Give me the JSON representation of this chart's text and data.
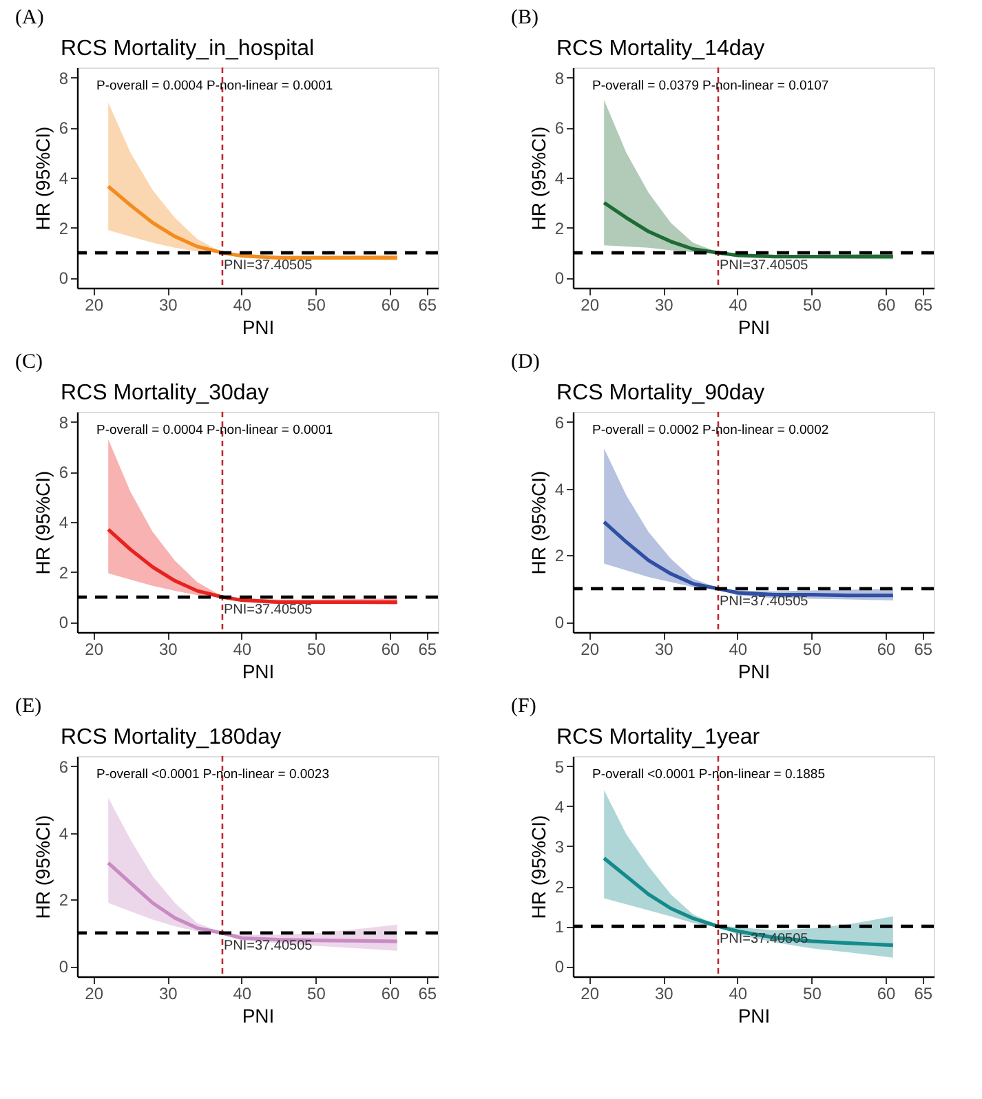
{
  "chart_data": [
    {
      "type": "line",
      "title": "RCS Mortality_in_hospital",
      "xlabel": "PNI",
      "ylabel": "HR (95%CI)",
      "annotations": [
        "(A)",
        "P-overall = 0.0004 P-non-linear = 0.0001"
      ],
      "x": [
        22,
        25,
        28,
        31,
        34,
        37.4,
        40,
        45,
        50,
        55,
        61
      ],
      "xlim": [
        17.8,
        66.5
      ],
      "xticks": [
        20,
        30,
        40,
        50,
        60,
        65
      ],
      "ylim": [
        -0.4,
        8.4
      ],
      "yticks": [
        0,
        2,
        4,
        6,
        8
      ],
      "grid": false,
      "legend": false,
      "marker": "none",
      "line_style": "solid",
      "series": [
        {
          "color": "#f28c1e",
          "values": [
            3.65,
            2.9,
            2.2,
            1.65,
            1.25,
            1.0,
            0.88,
            0.8,
            0.8,
            0.8,
            0.8
          ],
          "lower": [
            1.9,
            1.65,
            1.4,
            1.2,
            1.05,
            1.0,
            0.8,
            0.72,
            0.72,
            0.72,
            0.7
          ],
          "upper": [
            7.0,
            5.0,
            3.5,
            2.4,
            1.55,
            1.0,
            0.95,
            0.88,
            0.88,
            0.9,
            0.92
          ]
        }
      ],
      "ref_lines": [
        {
          "axis": "x",
          "value": 37.40505,
          "label": "PNI=37.40505",
          "color": "#c0272d",
          "line_style": "dashed"
        },
        {
          "axis": "y",
          "value": 1,
          "color": "#000000",
          "line_style": "dashed"
        }
      ]
    },
    {
      "type": "line",
      "title": "RCS Mortality_14day",
      "xlabel": "PNI",
      "ylabel": "HR (95%CI)",
      "annotations": [
        "(B)",
        "P-overall = 0.0379  P-non-linear = 0.0107"
      ],
      "x": [
        22,
        25,
        28,
        31,
        34,
        37.4,
        40,
        45,
        50,
        55,
        61
      ],
      "xlim": [
        17.8,
        66.5
      ],
      "xticks": [
        20,
        30,
        40,
        50,
        60,
        65
      ],
      "ylim": [
        -0.4,
        8.4
      ],
      "yticks": [
        0,
        2,
        4,
        6,
        8
      ],
      "grid": false,
      "legend": false,
      "marker": "none",
      "line_style": "solid",
      "series": [
        {
          "color": "#1f6b35",
          "values": [
            3.0,
            2.4,
            1.85,
            1.45,
            1.15,
            1.0,
            0.9,
            0.85,
            0.85,
            0.85,
            0.85
          ],
          "lower": [
            1.3,
            1.25,
            1.2,
            1.1,
            1.02,
            0.98,
            0.82,
            0.78,
            0.78,
            0.76,
            0.74
          ],
          "upper": [
            7.1,
            5.0,
            3.4,
            2.2,
            1.4,
            1.02,
            0.98,
            0.92,
            0.92,
            0.94,
            0.96
          ]
        }
      ],
      "ref_lines": [
        {
          "axis": "x",
          "value": 37.40505,
          "label": "PNI=37.40505",
          "color": "#c0272d",
          "line_style": "dashed"
        },
        {
          "axis": "y",
          "value": 1,
          "color": "#000000",
          "line_style": "dashed"
        }
      ]
    },
    {
      "type": "line",
      "title": "RCS Mortality_30day",
      "xlabel": "PNI",
      "ylabel": "HR (95%CI)",
      "annotations": [
        "(C)",
        "P-overall = 0.0004  P-non-linear = 0.0001"
      ],
      "x": [
        22,
        25,
        28,
        31,
        34,
        37.4,
        40,
        45,
        50,
        55,
        61
      ],
      "xlim": [
        17.8,
        66.5
      ],
      "xticks": [
        20,
        30,
        40,
        50,
        60,
        65
      ],
      "ylim": [
        -0.4,
        8.4
      ],
      "yticks": [
        0,
        2,
        4,
        6,
        8
      ],
      "grid": false,
      "legend": false,
      "marker": "none",
      "line_style": "solid",
      "series": [
        {
          "color": "#e8231f",
          "values": [
            3.7,
            2.9,
            2.2,
            1.65,
            1.25,
            1.0,
            0.88,
            0.8,
            0.8,
            0.8,
            0.8
          ],
          "lower": [
            1.95,
            1.7,
            1.45,
            1.25,
            1.08,
            0.98,
            0.8,
            0.72,
            0.72,
            0.72,
            0.7
          ],
          "upper": [
            7.3,
            5.2,
            3.6,
            2.45,
            1.6,
            1.02,
            0.95,
            0.9,
            0.9,
            0.92,
            0.95
          ]
        }
      ],
      "ref_lines": [
        {
          "axis": "x",
          "value": 37.40505,
          "label": "PNI=37.40505",
          "color": "#c0272d",
          "line_style": "dashed"
        },
        {
          "axis": "y",
          "value": 1,
          "color": "#000000",
          "line_style": "dashed"
        }
      ]
    },
    {
      "type": "line",
      "title": "RCS Mortality_90day",
      "xlabel": "PNI",
      "ylabel": "HR (95%CI)",
      "annotations": [
        "(D)",
        "P-overall = 0.0002  P-non-linear = 0.0002"
      ],
      "x": [
        22,
        25,
        28,
        31,
        34,
        37.4,
        40,
        45,
        50,
        55,
        61
      ],
      "xlim": [
        17.8,
        66.5
      ],
      "xticks": [
        20,
        30,
        40,
        50,
        60,
        65
      ],
      "ylim": [
        -0.3,
        6.3
      ],
      "yticks": [
        0,
        2,
        4,
        6
      ],
      "grid": false,
      "legend": false,
      "marker": "none",
      "line_style": "solid",
      "series": [
        {
          "color": "#2e4fa3",
          "values": [
            3.0,
            2.4,
            1.85,
            1.45,
            1.15,
            1.0,
            0.88,
            0.82,
            0.82,
            0.8,
            0.8
          ],
          "lower": [
            1.75,
            1.55,
            1.35,
            1.2,
            1.05,
            0.98,
            0.8,
            0.72,
            0.7,
            0.68,
            0.65
          ],
          "upper": [
            5.2,
            3.8,
            2.7,
            1.9,
            1.3,
            1.02,
            0.95,
            0.92,
            0.95,
            0.97,
            1.0
          ]
        }
      ],
      "ref_lines": [
        {
          "axis": "x",
          "value": 37.40505,
          "label": "PNI=37.40505",
          "color": "#c0272d",
          "line_style": "dashed"
        },
        {
          "axis": "y",
          "value": 1,
          "color": "#000000",
          "line_style": "dashed"
        }
      ]
    },
    {
      "type": "line",
      "title": "RCS Mortality_180day",
      "xlabel": "PNI",
      "ylabel": "HR (95%CI)",
      "annotations": [
        "(E)",
        "P-overall <0.0001 P-non-linear = 0.0023"
      ],
      "x": [
        22,
        25,
        28,
        31,
        34,
        37.4,
        40,
        45,
        50,
        55,
        61
      ],
      "xlim": [
        17.8,
        66.5
      ],
      "xticks": [
        20,
        30,
        40,
        50,
        60,
        65
      ],
      "ylim": [
        -0.3,
        6.3
      ],
      "yticks": [
        0,
        2,
        4,
        6
      ],
      "grid": false,
      "legend": false,
      "marker": "none",
      "line_style": "solid",
      "series": [
        {
          "color": "#c98bc4",
          "values": [
            3.1,
            2.5,
            1.9,
            1.45,
            1.15,
            1.0,
            0.85,
            0.8,
            0.78,
            0.77,
            0.75
          ],
          "lower": [
            1.9,
            1.65,
            1.4,
            1.2,
            1.05,
            0.98,
            0.78,
            0.7,
            0.62,
            0.55,
            0.47
          ],
          "upper": [
            5.05,
            3.8,
            2.7,
            1.9,
            1.3,
            1.02,
            0.95,
            0.95,
            1.0,
            1.1,
            1.25
          ]
        }
      ],
      "ref_lines": [
        {
          "axis": "x",
          "value": 37.40505,
          "label": "PNI=37.40505",
          "color": "#c0272d",
          "line_style": "dashed"
        },
        {
          "axis": "y",
          "value": 1,
          "color": "#000000",
          "line_style": "dashed"
        }
      ]
    },
    {
      "type": "line",
      "title": "RCS Mortality_1year",
      "xlabel": "PNI",
      "ylabel": "HR (95%CI)",
      "annotations": [
        "(F)",
        "P-overall <0.0001  P-non-linear = 0.1885"
      ],
      "x": [
        22,
        25,
        28,
        31,
        34,
        37.4,
        40,
        45,
        50,
        55,
        61
      ],
      "xlim": [
        17.8,
        66.5
      ],
      "xticks": [
        20,
        30,
        40,
        50,
        60,
        65
      ],
      "ylim": [
        -0.25,
        5.25
      ],
      "yticks": [
        0,
        1,
        2,
        3,
        4,
        5
      ],
      "grid": false,
      "legend": false,
      "marker": "none",
      "line_style": "solid",
      "series": [
        {
          "color": "#168a8a",
          "values": [
            2.7,
            2.25,
            1.8,
            1.45,
            1.2,
            1.0,
            0.88,
            0.72,
            0.63,
            0.58,
            0.53
          ],
          "lower": [
            1.7,
            1.55,
            1.4,
            1.25,
            1.08,
            0.98,
            0.8,
            0.6,
            0.45,
            0.35,
            0.22
          ],
          "upper": [
            4.4,
            3.3,
            2.5,
            1.8,
            1.3,
            1.02,
            0.98,
            0.9,
            0.95,
            1.05,
            1.25
          ]
        }
      ],
      "ref_lines": [
        {
          "axis": "x",
          "value": 37.40505,
          "label": "PNI=37.40505",
          "color": "#c0272d",
          "line_style": "dashed"
        },
        {
          "axis": "y",
          "value": 1,
          "color": "#000000",
          "line_style": "dashed"
        }
      ]
    }
  ]
}
